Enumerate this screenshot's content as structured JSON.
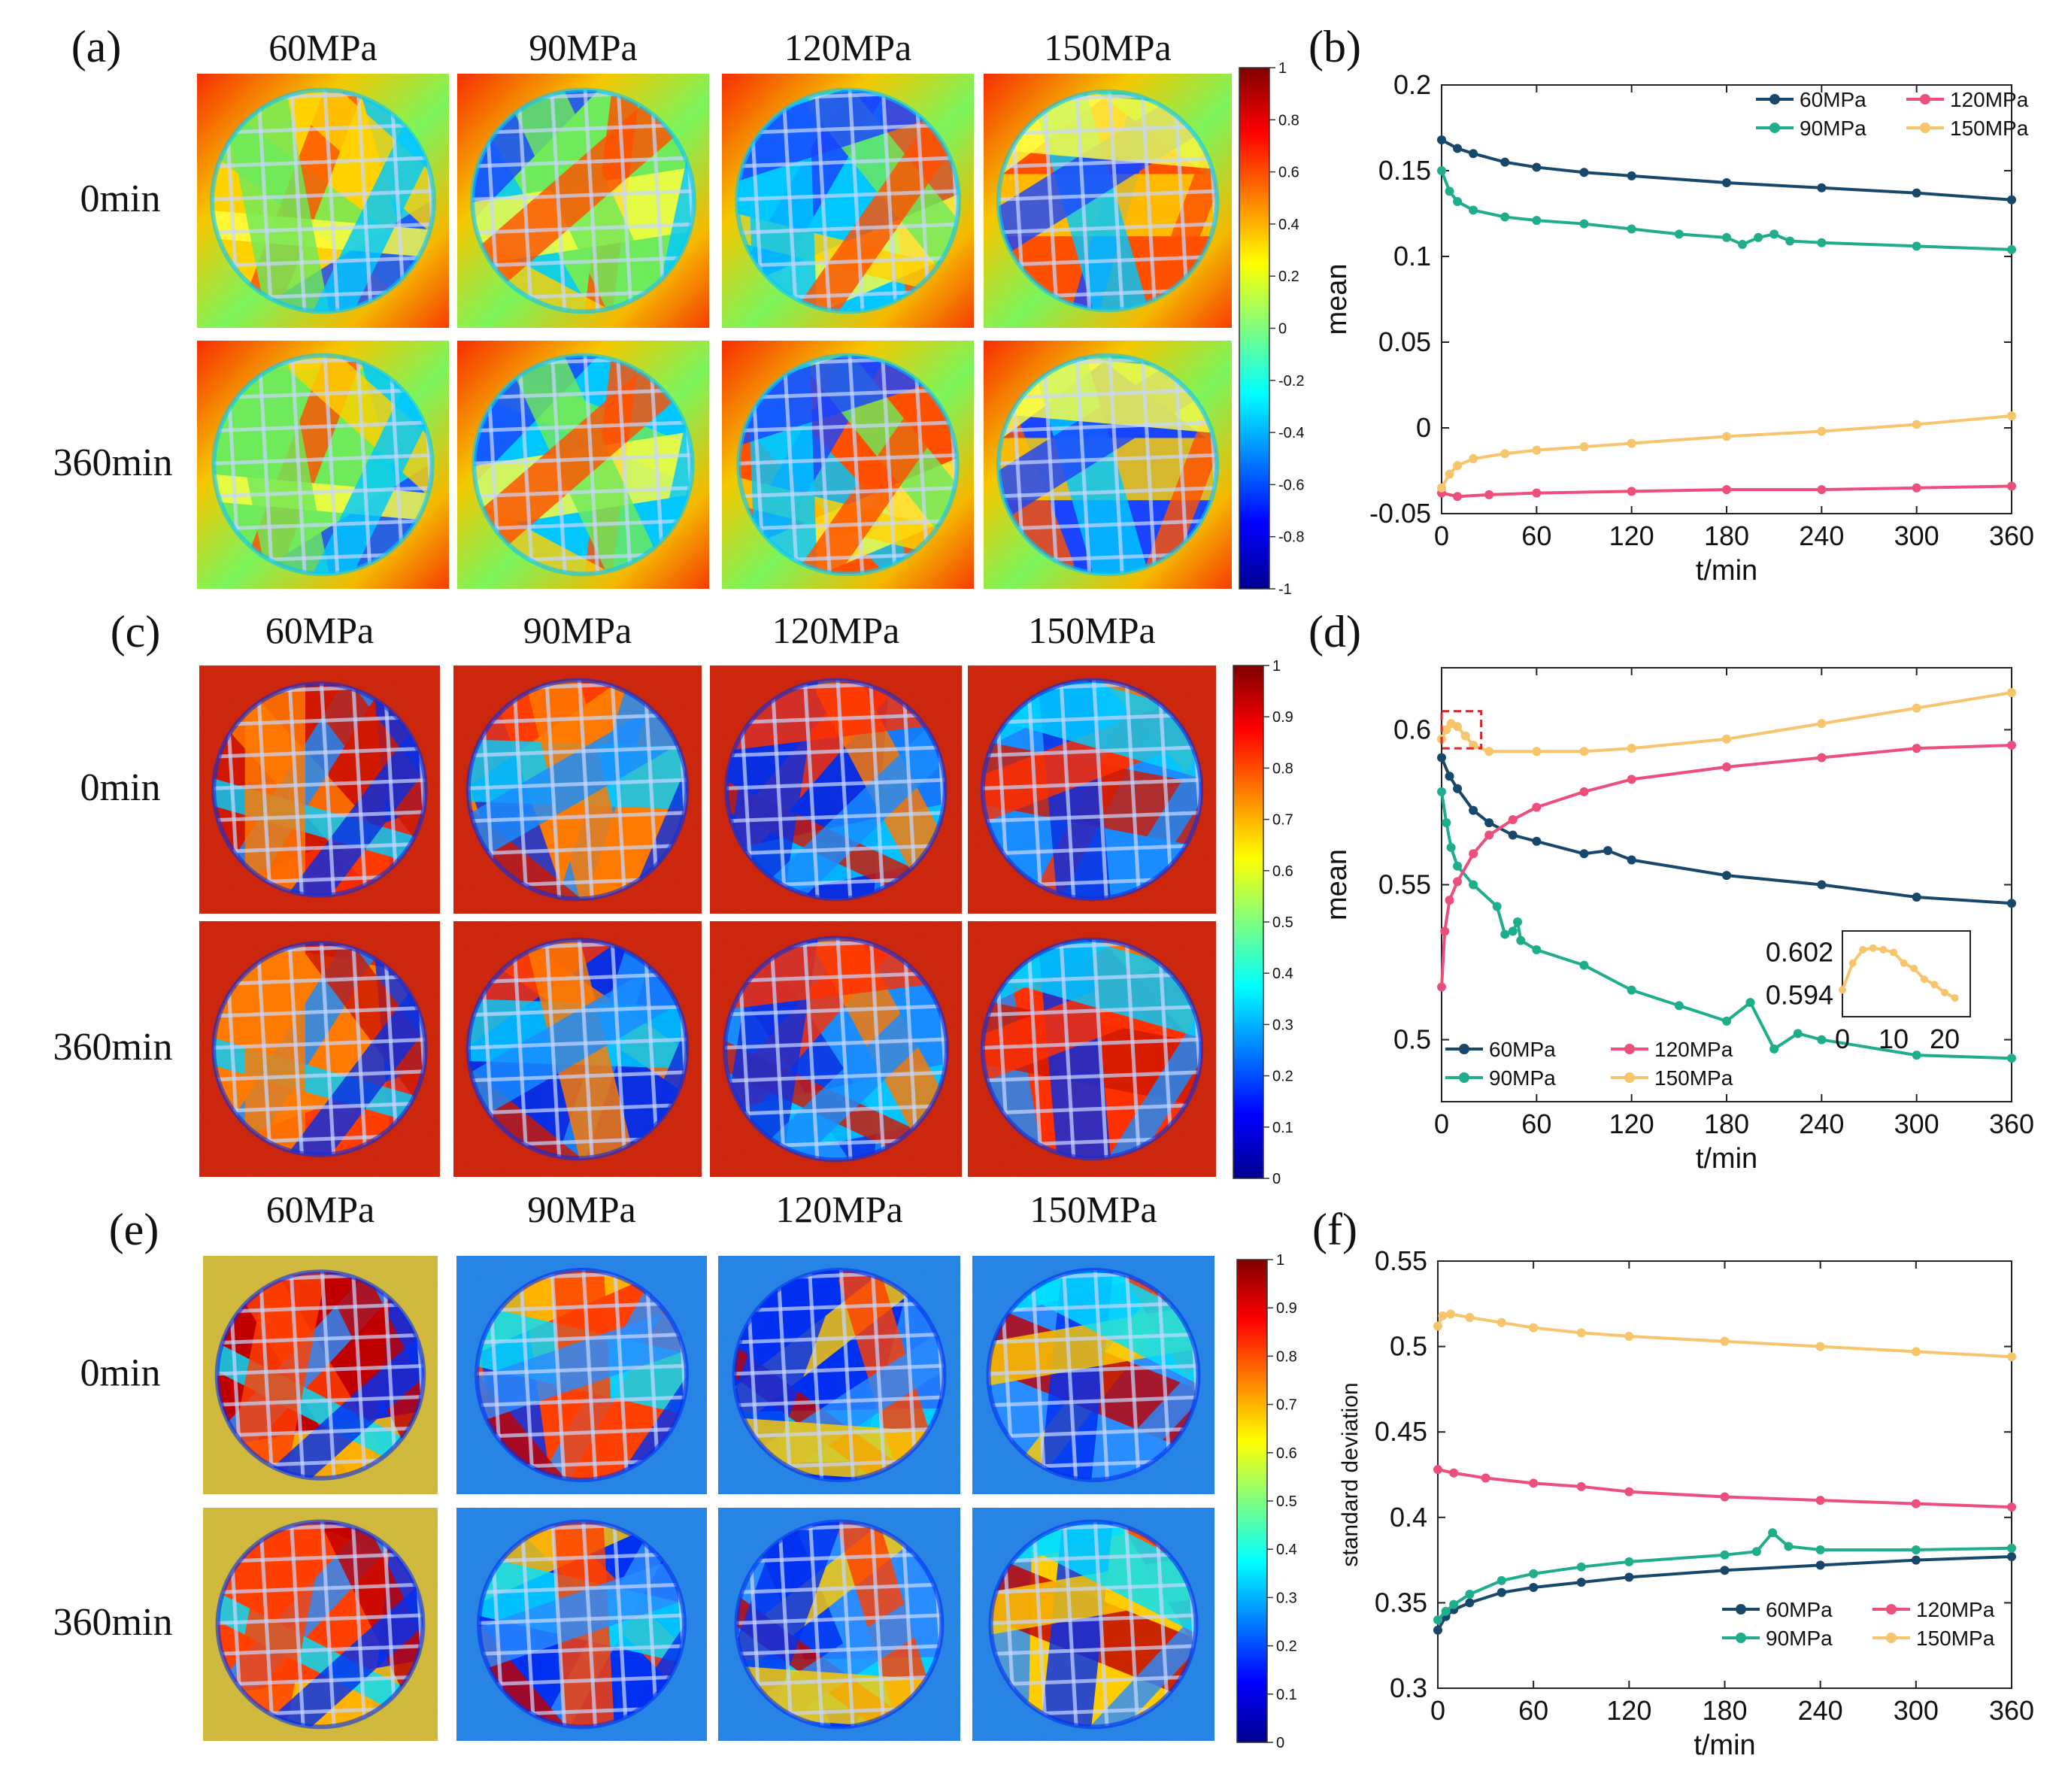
{
  "figure": {
    "panel_labels": [
      "(a)",
      "(b)",
      "(c)",
      "(d)",
      "(e)",
      "(f)"
    ],
    "pressure_labels": [
      "60MPa",
      "90MPa",
      "120MPa",
      "150MPa"
    ],
    "time_labels": [
      "0min",
      "360min"
    ],
    "colorbar_ticks": {
      "a": [
        "1",
        "0.8",
        "0.6",
        "0.4",
        "0.2",
        "0",
        "-0.2",
        "-0.4",
        "-0.6",
        "-0.8",
        "-1"
      ],
      "c": [
        "1",
        "0.9",
        "0.8",
        "0.7",
        "0.6",
        "0.5",
        "0.4",
        "0.3",
        "0.2",
        "0.1",
        "0"
      ],
      "e": [
        "1",
        "0.9",
        "0.8",
        "0.7",
        "0.6",
        "0.5",
        "0.4",
        "0.3",
        "0.2",
        "0.1",
        "0"
      ]
    },
    "colors": {
      "60MPa": "#17476b",
      "90MPa": "#1fae8c",
      "120MPa": "#ec4f7c",
      "150MPa": "#f7c56b",
      "inset_box": "#d62728"
    }
  },
  "chart_data": [
    {
      "id": "b",
      "type": "line",
      "xlabel": "t/min",
      "ylabel": "mean",
      "xlim": [
        0,
        360
      ],
      "ylim": [
        -0.05,
        0.2
      ],
      "xticks": [
        "0",
        "60",
        "120",
        "180",
        "240",
        "300",
        "360"
      ],
      "yticks": [
        "-0.05",
        "0",
        "0.05",
        "0.1",
        "0.15",
        "0.2"
      ],
      "legend": [
        "60MPa",
        "90MPa",
        "120MPa",
        "150MPa"
      ],
      "legend_position": "top-right",
      "series": [
        {
          "name": "60MPa",
          "key": [
            [
              0,
              0.168
            ],
            [
              10,
              0.163
            ],
            [
              20,
              0.16
            ],
            [
              40,
              0.155
            ],
            [
              60,
              0.152
            ],
            [
              90,
              0.149
            ],
            [
              120,
              0.147
            ],
            [
              180,
              0.143
            ],
            [
              240,
              0.14
            ],
            [
              300,
              0.137
            ],
            [
              360,
              0.133
            ]
          ]
        },
        {
          "name": "90MPa",
          "key": [
            [
              0,
              0.15
            ],
            [
              5,
              0.138
            ],
            [
              10,
              0.132
            ],
            [
              20,
              0.127
            ],
            [
              40,
              0.123
            ],
            [
              60,
              0.121
            ],
            [
              90,
              0.119
            ],
            [
              120,
              0.116
            ],
            [
              150,
              0.113
            ],
            [
              180,
              0.111
            ],
            [
              190,
              0.107
            ],
            [
              200,
              0.111
            ],
            [
              210,
              0.113
            ],
            [
              220,
              0.109
            ],
            [
              240,
              0.108
            ],
            [
              300,
              0.106
            ],
            [
              360,
              0.104
            ]
          ]
        },
        {
          "name": "120MPa",
          "key": [
            [
              0,
              -0.038
            ],
            [
              10,
              -0.04
            ],
            [
              30,
              -0.039
            ],
            [
              60,
              -0.038
            ],
            [
              120,
              -0.037
            ],
            [
              180,
              -0.036
            ],
            [
              240,
              -0.036
            ],
            [
              300,
              -0.035
            ],
            [
              360,
              -0.034
            ]
          ]
        },
        {
          "name": "150MPa",
          "key": [
            [
              0,
              -0.035
            ],
            [
              5,
              -0.027
            ],
            [
              10,
              -0.022
            ],
            [
              20,
              -0.018
            ],
            [
              40,
              -0.015
            ],
            [
              60,
              -0.013
            ],
            [
              90,
              -0.011
            ],
            [
              120,
              -0.009
            ],
            [
              180,
              -0.005
            ],
            [
              240,
              -0.002
            ],
            [
              300,
              0.002
            ],
            [
              360,
              0.007
            ]
          ]
        }
      ]
    },
    {
      "id": "d",
      "type": "line",
      "xlabel": "t/min",
      "ylabel": "mean",
      "xlim": [
        0,
        360
      ],
      "ylim": [
        0.48,
        0.62
      ],
      "xticks": [
        "0",
        "60",
        "120",
        "180",
        "240",
        "300",
        "360"
      ],
      "yticks": [
        "0.5",
        "0.55",
        "0.6"
      ],
      "legend": [
        "60MPa",
        "120MPa",
        "90MPa",
        "150MPa"
      ],
      "legend_position": "bottom-left",
      "series": [
        {
          "name": "60MPa",
          "key": [
            [
              0,
              0.591
            ],
            [
              5,
              0.585
            ],
            [
              10,
              0.581
            ],
            [
              20,
              0.574
            ],
            [
              30,
              0.57
            ],
            [
              45,
              0.566
            ],
            [
              60,
              0.564
            ],
            [
              90,
              0.56
            ],
            [
              105,
              0.561
            ],
            [
              120,
              0.558
            ],
            [
              180,
              0.553
            ],
            [
              240,
              0.55
            ],
            [
              300,
              0.546
            ],
            [
              360,
              0.544
            ]
          ]
        },
        {
          "name": "90MPa",
          "key": [
            [
              0,
              0.58
            ],
            [
              3,
              0.57
            ],
            [
              6,
              0.562
            ],
            [
              10,
              0.556
            ],
            [
              20,
              0.55
            ],
            [
              35,
              0.543
            ],
            [
              40,
              0.534
            ],
            [
              45,
              0.535
            ],
            [
              48,
              0.538
            ],
            [
              50,
              0.532
            ],
            [
              60,
              0.529
            ],
            [
              90,
              0.524
            ],
            [
              120,
              0.516
            ],
            [
              150,
              0.511
            ],
            [
              180,
              0.506
            ],
            [
              195,
              0.512
            ],
            [
              210,
              0.497
            ],
            [
              225,
              0.502
            ],
            [
              240,
              0.5
            ],
            [
              300,
              0.495
            ],
            [
              360,
              0.494
            ]
          ]
        },
        {
          "name": "120MPa",
          "key": [
            [
              0,
              0.517
            ],
            [
              2,
              0.535
            ],
            [
              5,
              0.545
            ],
            [
              10,
              0.551
            ],
            [
              20,
              0.56
            ],
            [
              30,
              0.566
            ],
            [
              45,
              0.571
            ],
            [
              60,
              0.575
            ],
            [
              90,
              0.58
            ],
            [
              120,
              0.584
            ],
            [
              180,
              0.588
            ],
            [
              240,
              0.591
            ],
            [
              300,
              0.594
            ],
            [
              360,
              0.595
            ]
          ]
        },
        {
          "name": "150MPa",
          "key": [
            [
              0,
              0.597
            ],
            [
              3,
              0.6
            ],
            [
              6,
              0.602
            ],
            [
              10,
              0.601
            ],
            [
              15,
              0.598
            ],
            [
              20,
              0.595
            ],
            [
              30,
              0.593
            ],
            [
              60,
              0.593
            ],
            [
              90,
              0.593
            ],
            [
              120,
              0.594
            ],
            [
              180,
              0.597
            ],
            [
              240,
              0.602
            ],
            [
              300,
              0.607
            ],
            [
              360,
              0.612
            ]
          ]
        }
      ],
      "inset": {
        "xlim": [
          0,
          25
        ],
        "ylim": [
          0.59,
          0.606
        ],
        "xticks": [
          "0",
          "10",
          "20"
        ],
        "yticks": [
          "0.594",
          "0.602"
        ],
        "series": {
          "name": "150MPa",
          "key": [
            [
              0,
              0.595
            ],
            [
              2,
              0.6
            ],
            [
              4,
              0.6025
            ],
            [
              6,
              0.6028
            ],
            [
              8,
              0.6025
            ],
            [
              10,
              0.602
            ],
            [
              12,
              0.6
            ],
            [
              14,
              0.599
            ],
            [
              16,
              0.597
            ],
            [
              18,
              0.596
            ],
            [
              20,
              0.5945
            ],
            [
              22,
              0.5935
            ]
          ]
        }
      }
    },
    {
      "id": "f",
      "type": "line",
      "xlabel": "t/min",
      "ylabel": "standard deviation",
      "xlim": [
        0,
        360
      ],
      "ylim": [
        0.3,
        0.55
      ],
      "xticks": [
        "0",
        "60",
        "120",
        "180",
        "240",
        "300",
        "360"
      ],
      "yticks": [
        "0.3",
        "0.35",
        "0.4",
        "0.45",
        "0.5",
        "0.55"
      ],
      "legend": [
        "60MPa",
        "120MPa",
        "90MPa",
        "150MPa"
      ],
      "legend_position": "bottom-right",
      "series": [
        {
          "name": "60MPa",
          "key": [
            [
              0,
              0.334
            ],
            [
              5,
              0.342
            ],
            [
              10,
              0.346
            ],
            [
              20,
              0.35
            ],
            [
              40,
              0.356
            ],
            [
              60,
              0.359
            ],
            [
              90,
              0.362
            ],
            [
              120,
              0.365
            ],
            [
              180,
              0.369
            ],
            [
              240,
              0.372
            ],
            [
              300,
              0.375
            ],
            [
              360,
              0.377
            ]
          ]
        },
        {
          "name": "90MPa",
          "key": [
            [
              0,
              0.34
            ],
            [
              5,
              0.345
            ],
            [
              10,
              0.349
            ],
            [
              20,
              0.355
            ],
            [
              40,
              0.363
            ],
            [
              60,
              0.367
            ],
            [
              90,
              0.371
            ],
            [
              120,
              0.374
            ],
            [
              180,
              0.378
            ],
            [
              200,
              0.38
            ],
            [
              210,
              0.391
            ],
            [
              220,
              0.383
            ],
            [
              240,
              0.381
            ],
            [
              300,
              0.381
            ],
            [
              360,
              0.382
            ]
          ]
        },
        {
          "name": "120MPa",
          "key": [
            [
              0,
              0.428
            ],
            [
              10,
              0.426
            ],
            [
              30,
              0.423
            ],
            [
              60,
              0.42
            ],
            [
              90,
              0.418
            ],
            [
              120,
              0.415
            ],
            [
              180,
              0.412
            ],
            [
              240,
              0.41
            ],
            [
              300,
              0.408
            ],
            [
              360,
              0.406
            ]
          ]
        },
        {
          "name": "150MPa",
          "key": [
            [
              0,
              0.512
            ],
            [
              3,
              0.518
            ],
            [
              8,
              0.519
            ],
            [
              20,
              0.517
            ],
            [
              40,
              0.514
            ],
            [
              60,
              0.511
            ],
            [
              90,
              0.508
            ],
            [
              120,
              0.506
            ],
            [
              180,
              0.503
            ],
            [
              240,
              0.5
            ],
            [
              300,
              0.497
            ],
            [
              360,
              0.494
            ]
          ]
        }
      ]
    }
  ]
}
